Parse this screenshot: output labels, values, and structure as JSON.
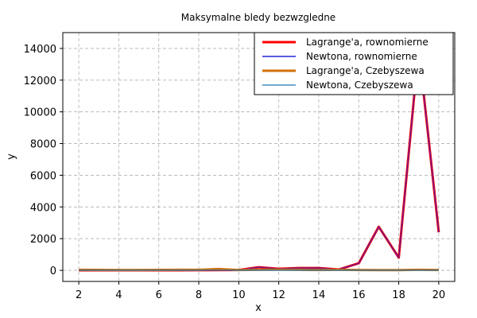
{
  "chart_data": {
    "type": "line",
    "title": "Maksymalne bledy bezwzgledne",
    "xlabel": "x",
    "ylabel": "y",
    "xlim": [
      1.2,
      20.8
    ],
    "ylim": [
      -700,
      15000
    ],
    "xticks": [
      2,
      4,
      6,
      8,
      10,
      12,
      14,
      16,
      18,
      20
    ],
    "yticks": [
      0,
      2000,
      4000,
      6000,
      8000,
      10000,
      12000,
      14000
    ],
    "grid": true,
    "legend_position": "top-right",
    "x": [
      2,
      3,
      4,
      5,
      6,
      7,
      8,
      9,
      10,
      11,
      12,
      13,
      14,
      15,
      16,
      17,
      18,
      19,
      20
    ],
    "series": [
      {
        "name": "Lagrange'a, rownomierne",
        "color": "#ff0000",
        "width": 3,
        "values": [
          0,
          0,
          0,
          0,
          0,
          0,
          5,
          10,
          20,
          200,
          100,
          150,
          150,
          50,
          450,
          2750,
          800,
          14000,
          2400
        ]
      },
      {
        "name": "Newtona, rownomierne",
        "color": "#2222dd",
        "width": 1.5,
        "values": [
          0,
          0,
          0,
          0,
          0,
          0,
          5,
          10,
          20,
          200,
          100,
          150,
          150,
          50,
          450,
          2750,
          800,
          14000,
          2400
        ]
      },
      {
        "name": "Lagrange'a, Czebyszewa",
        "color": "#d2700a",
        "width": 3,
        "values": [
          30,
          25,
          20,
          20,
          25,
          30,
          30,
          80,
          20,
          30,
          40,
          30,
          20,
          30,
          20,
          10,
          15,
          30,
          20
        ]
      },
      {
        "name": "Newtona, Czebyszewa",
        "color": "#1f77b4",
        "width": 1.2,
        "values": [
          5,
          5,
          5,
          5,
          5,
          5,
          5,
          5,
          5,
          5,
          5,
          5,
          5,
          5,
          5,
          5,
          5,
          5,
          5
        ]
      }
    ]
  }
}
